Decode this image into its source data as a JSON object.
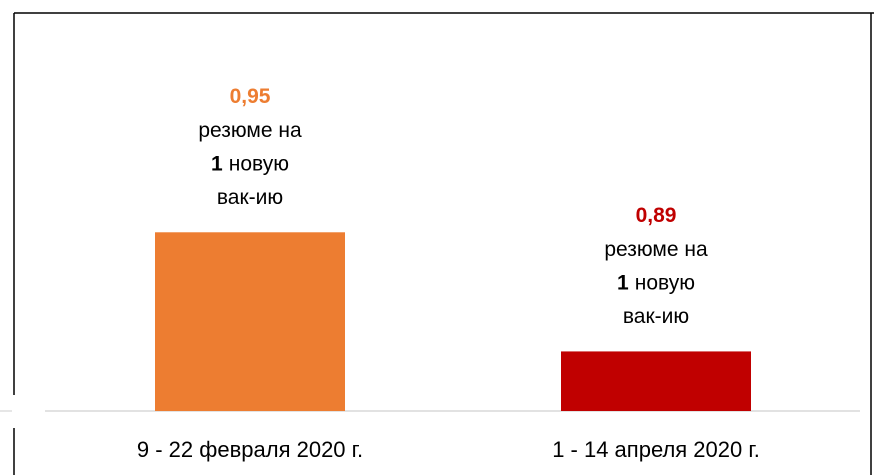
{
  "chart_data": {
    "type": "bar",
    "categories": [
      "9 - 22 февраля 2020 г.",
      "1 - 14 апреля 2020 г."
    ],
    "values": [
      0.95,
      0.89
    ],
    "value_labels": [
      "0,95",
      "0,89"
    ],
    "colors": [
      "#ed7d31",
      "#c00000"
    ],
    "annotation": {
      "line1": "резюме на",
      "count": "1",
      "line2": "новую",
      "line3": "вак-ию"
    },
    "ylim": [
      0.86,
      1.0
    ],
    "grid": false
  }
}
